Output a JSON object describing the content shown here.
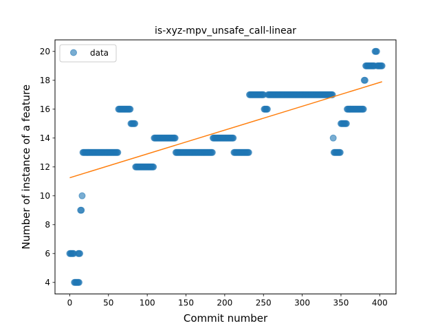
{
  "chart_data": {
    "type": "scatter",
    "title": "is-xyz-mpv_unsafe_call-linear",
    "xlabel": "Commit number",
    "ylabel": "Number of instance of a feature",
    "xlim": [
      -19,
      421
    ],
    "ylim": [
      3.2,
      20.8
    ],
    "xticks": [
      0,
      50,
      100,
      150,
      200,
      250,
      300,
      350,
      400
    ],
    "yticks": [
      4,
      6,
      8,
      10,
      12,
      14,
      16,
      18,
      20
    ],
    "legend": {
      "label": "data",
      "position": "upper-left"
    },
    "grid": false,
    "colors": {
      "data": "#1f77b4",
      "fit": "#ff7f0e"
    },
    "series": [
      {
        "name": "data",
        "kind": "points",
        "segments": [
          {
            "x_start": 0,
            "x_end": 5,
            "y": 6
          },
          {
            "x_start": 6,
            "x_end": 12,
            "y": 4
          },
          {
            "x_start": 11,
            "x_end": 13,
            "y": 6
          },
          {
            "x_start": 14,
            "x_end": 15,
            "y": 9
          },
          {
            "x_start": 16,
            "x_end": 16,
            "y": 10
          },
          {
            "x_start": 17,
            "x_end": 62,
            "y": 13
          },
          {
            "x_start": 63,
            "x_end": 78,
            "y": 16
          },
          {
            "x_start": 79,
            "x_end": 84,
            "y": 15
          },
          {
            "x_start": 85,
            "x_end": 108,
            "y": 12
          },
          {
            "x_start": 109,
            "x_end": 136,
            "y": 14
          },
          {
            "x_start": 137,
            "x_end": 184,
            "y": 13
          },
          {
            "x_start": 185,
            "x_end": 211,
            "y": 14
          },
          {
            "x_start": 212,
            "x_end": 231,
            "y": 13
          },
          {
            "x_start": 232,
            "x_end": 250,
            "y": 17
          },
          {
            "x_start": 251,
            "x_end": 255,
            "y": 16
          },
          {
            "x_start": 256,
            "x_end": 339,
            "y": 17
          },
          {
            "x_start": 340,
            "x_end": 340,
            "y": 14
          },
          {
            "x_start": 341,
            "x_end": 349,
            "y": 13
          },
          {
            "x_start": 350,
            "x_end": 357,
            "y": 15
          },
          {
            "x_start": 358,
            "x_end": 379,
            "y": 16
          },
          {
            "x_start": 380,
            "x_end": 381,
            "y": 18
          },
          {
            "x_start": 382,
            "x_end": 393,
            "y": 19
          },
          {
            "x_start": 394,
            "x_end": 396,
            "y": 20
          },
          {
            "x_start": 397,
            "x_end": 403,
            "y": 19
          }
        ]
      },
      {
        "name": "",
        "kind": "line",
        "x": [
          0,
          403
        ],
        "y": [
          11.25,
          17.9
        ]
      }
    ]
  }
}
